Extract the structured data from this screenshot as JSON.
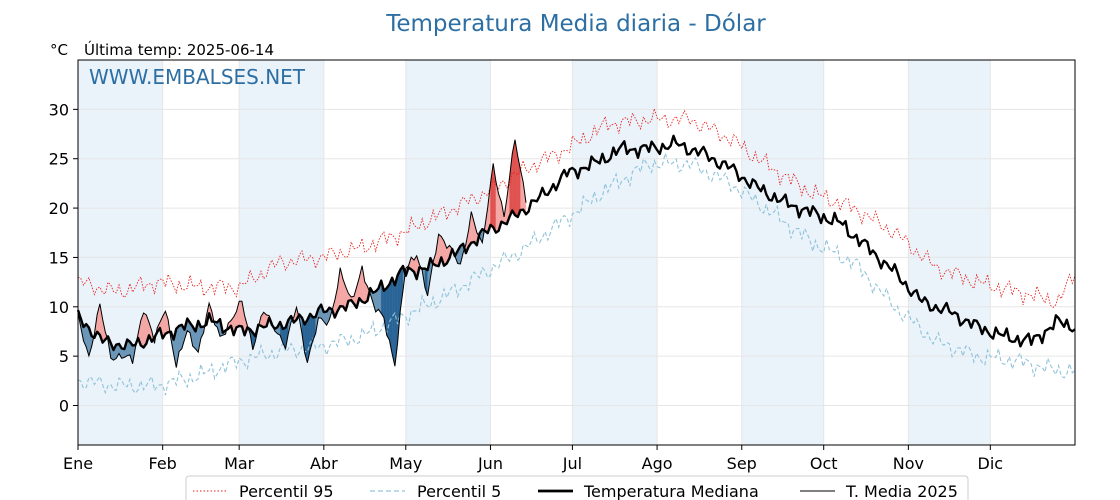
{
  "chart_data": {
    "type": "line",
    "title": "Temperatura Media diaria - Dólar",
    "unit_label": "°C",
    "last_temp_label": "Última temp: 2025-06-14",
    "watermark": "WWW.EMBALSES.NET",
    "x_ticks": [
      "Ene",
      "Feb",
      "Mar",
      "Abr",
      "May",
      "Jun",
      "Jul",
      "Ago",
      "Sep",
      "Oct",
      "Nov",
      "Dic"
    ],
    "month_start_days": [
      1,
      32,
      60,
      91,
      121,
      152,
      182,
      213,
      244,
      274,
      305,
      335
    ],
    "xlim": [
      1,
      366
    ],
    "ylim": [
      -4,
      35
    ],
    "y_ticks": [
      0,
      5,
      10,
      15,
      20,
      25,
      30
    ],
    "grid": true,
    "legend_position": "bottom-center",
    "colors": {
      "title": "#2e6fa3",
      "p95": "#e8231f",
      "p5": "#8fc3d9",
      "median": "#000000",
      "t2025": "#000000",
      "warm_fill": "#f4a7a4",
      "warm_strong": "#e0524f",
      "cold_fill": "#6a96b8",
      "cold_strong": "#2a6496",
      "band": "#eaf2fa"
    },
    "series": [
      {
        "name": "Percentil 95",
        "style": "dotted",
        "x": [
          1,
          15,
          30,
          45,
          60,
          75,
          90,
          105,
          120,
          135,
          150,
          165,
          180,
          195,
          210,
          225,
          240,
          255,
          270,
          285,
          300,
          315,
          330,
          345,
          360,
          366
        ],
        "values": [
          12.5,
          11.5,
          12.5,
          12.0,
          12.0,
          14.5,
          15.0,
          16.0,
          17.5,
          19.5,
          21.5,
          24.0,
          26.0,
          28.5,
          29.0,
          29.0,
          27.0,
          24.0,
          21.5,
          20.0,
          17.5,
          14.0,
          12.5,
          11.5,
          10.5,
          13.5
        ]
      },
      {
        "name": "Percentil 5",
        "style": "dashed",
        "x": [
          1,
          15,
          30,
          45,
          60,
          75,
          90,
          105,
          120,
          135,
          150,
          165,
          180,
          195,
          210,
          225,
          240,
          255,
          270,
          285,
          300,
          315,
          330,
          345,
          360,
          366
        ],
        "values": [
          2.5,
          2.0,
          2.0,
          3.0,
          4.5,
          5.5,
          6.0,
          7.0,
          9.0,
          11.0,
          13.5,
          16.0,
          19.0,
          22.0,
          24.5,
          24.5,
          22.5,
          19.5,
          16.5,
          14.5,
          10.0,
          6.5,
          5.0,
          4.5,
          3.5,
          3.5
        ]
      },
      {
        "name": "Temperatura Mediana",
        "style": "solid-thick",
        "x": [
          1,
          10,
          20,
          30,
          40,
          50,
          60,
          70,
          80,
          90,
          100,
          110,
          120,
          130,
          140,
          150,
          160,
          170,
          180,
          190,
          200,
          210,
          220,
          230,
          240,
          250,
          260,
          270,
          280,
          290,
          300,
          310,
          320,
          330,
          340,
          350,
          360,
          366
        ],
        "values": [
          9.0,
          6.5,
          6.0,
          7.0,
          8.0,
          8.5,
          7.5,
          8.0,
          8.5,
          9.5,
          10.0,
          11.5,
          13.5,
          14.0,
          15.5,
          17.5,
          19.0,
          21.0,
          23.5,
          24.5,
          26.0,
          26.0,
          26.5,
          25.5,
          24.0,
          22.0,
          20.5,
          19.5,
          18.5,
          16.0,
          13.5,
          10.5,
          9.5,
          8.0,
          7.0,
          6.5,
          8.5,
          8.0
        ]
      },
      {
        "name": "T. Media 2025",
        "style": "solid-thin",
        "x": [
          1,
          5,
          9,
          13,
          17,
          21,
          25,
          29,
          33,
          37,
          41,
          45,
          49,
          53,
          57,
          61,
          65,
          69,
          73,
          77,
          81,
          85,
          89,
          93,
          97,
          101,
          105,
          109,
          113,
          117,
          121,
          125,
          129,
          133,
          137,
          141,
          145,
          149,
          153,
          157,
          161,
          165
        ],
        "values": [
          9.0,
          5.0,
          10.0,
          5.0,
          5.0,
          4.5,
          10.0,
          6.5,
          10.0,
          4.0,
          7.5,
          5.5,
          10.0,
          7.0,
          8.5,
          10.5,
          6.0,
          9.5,
          8.0,
          6.0,
          10.0,
          4.5,
          8.5,
          8.5,
          13.5,
          10.5,
          14.0,
          10.0,
          9.0,
          4.0,
          14.0,
          15.5,
          11.0,
          17.5,
          16.0,
          14.0,
          19.5,
          16.0,
          24.5,
          19.0,
          27.0,
          21.0
        ]
      }
    ]
  },
  "legend": [
    {
      "label": "Percentil 95"
    },
    {
      "label": "Percentil 5"
    },
    {
      "label": "Temperatura Mediana"
    },
    {
      "label": "T. Media 2025"
    }
  ]
}
